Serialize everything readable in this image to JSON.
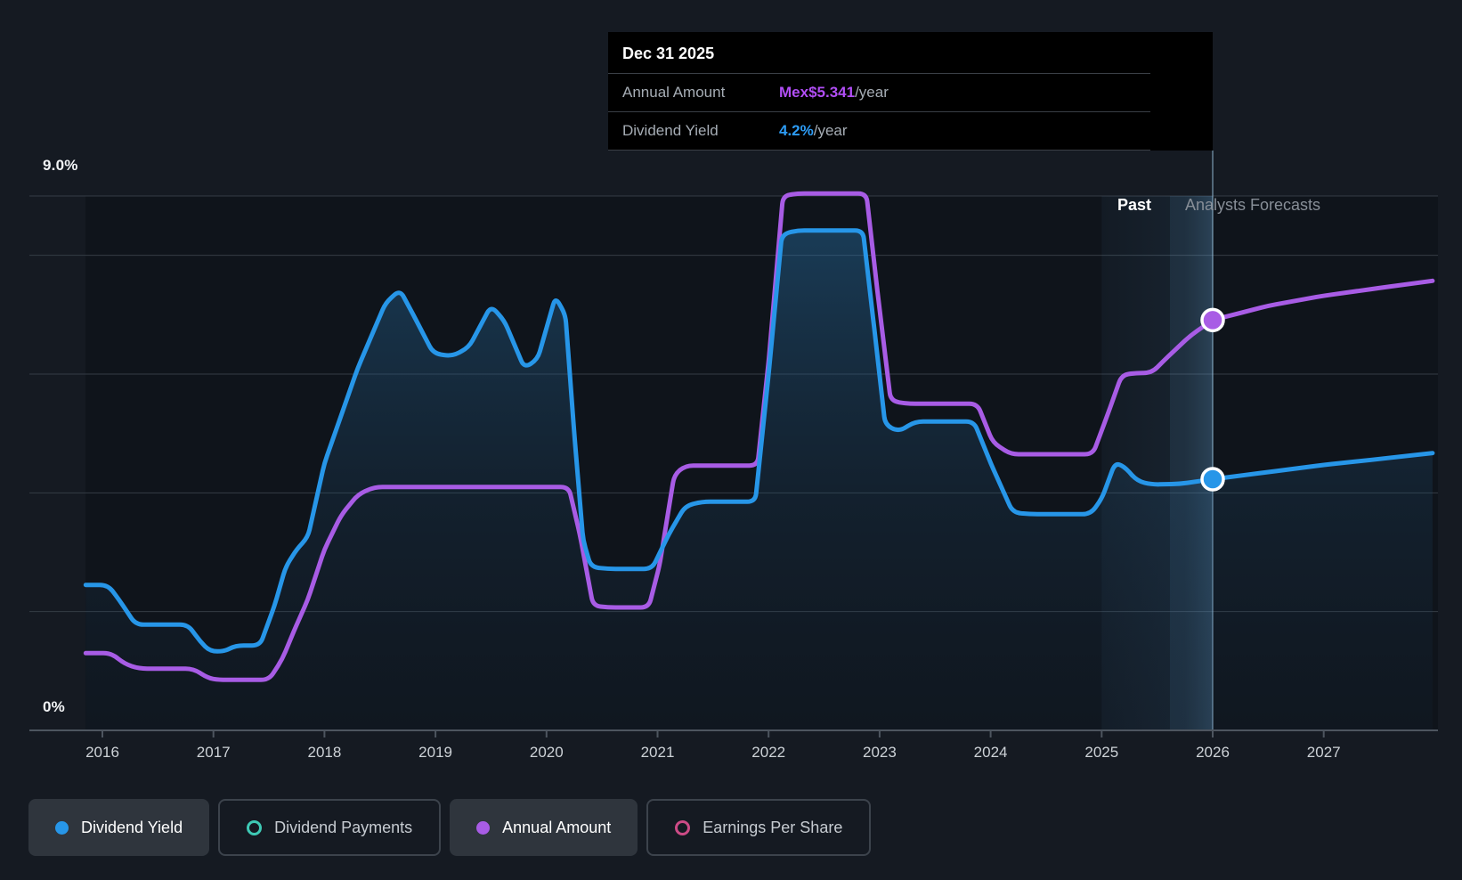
{
  "y_axis": {
    "top_label": "9.0%",
    "bottom_label": "0%"
  },
  "x_axis": {
    "years": [
      "2016",
      "2017",
      "2018",
      "2019",
      "2020",
      "2021",
      "2022",
      "2023",
      "2024",
      "2025",
      "2026",
      "2027"
    ]
  },
  "sections": {
    "past": "Past",
    "forecast": "Analysts Forecasts"
  },
  "tooltip": {
    "date": "Dec 31 2025",
    "rows": [
      {
        "label": "Annual Amount",
        "value": "Mex$5.341",
        "suffix": "/year",
        "value_color": "#b14ef5"
      },
      {
        "label": "Dividend Yield",
        "value": "4.2%",
        "suffix": "/year",
        "value_color": "#2d9cf5"
      }
    ]
  },
  "legend": [
    {
      "label": "Dividend Yield",
      "color": "#2796e8",
      "style": "filled",
      "active": true
    },
    {
      "label": "Dividend Payments",
      "color": "#3ec9b5",
      "style": "ring",
      "active": false
    },
    {
      "label": "Annual Amount",
      "color": "#a85ce5",
      "style": "filled",
      "active": true
    },
    {
      "label": "Earnings Per Share",
      "color": "#cc4b86",
      "style": "ring",
      "active": false
    }
  ],
  "colors": {
    "background": "#151a22",
    "plot_background": "#0f141b",
    "gridline": "#353c45",
    "axis": "#4d555f",
    "year_label": "#cdd2d7",
    "divider": "#9fc6e3",
    "blue": "#2796e8",
    "purple": "#a85ce5"
  },
  "chart_data": {
    "type": "area",
    "title": "Dividend history and forecast chart",
    "x_unit": "year",
    "xlim": [
      2015.85,
      2027.98
    ],
    "ylim": [
      0,
      9
    ],
    "y_tick_labels_shown": [
      "9.0%",
      "0%"
    ],
    "grid_percents": [
      9,
      8,
      6,
      4,
      2
    ],
    "band_past_to_forecast": [
      2025.0,
      2026.0
    ],
    "divider_x": 2026.0,
    "legend_position": "bottom-left",
    "series": [
      {
        "name": "Annual Amount",
        "color": "#a85ce5",
        "fill": false,
        "marker_at": [
          2026.0,
          6.91
        ],
        "marker_label": "Mex$5.341/year",
        "points": [
          [
            2015.85,
            1.3
          ],
          [
            2016.08,
            1.3
          ],
          [
            2016.2,
            1.12
          ],
          [
            2016.33,
            1.04
          ],
          [
            2016.82,
            1.04
          ],
          [
            2016.95,
            0.88
          ],
          [
            2017.05,
            0.85
          ],
          [
            2017.5,
            0.85
          ],
          [
            2017.62,
            1.2
          ],
          [
            2017.75,
            1.78
          ],
          [
            2017.85,
            2.2
          ],
          [
            2018.0,
            3.05
          ],
          [
            2018.15,
            3.62
          ],
          [
            2018.3,
            3.97
          ],
          [
            2018.45,
            4.1
          ],
          [
            2020.2,
            4.1
          ],
          [
            2020.3,
            3.3
          ],
          [
            2020.42,
            2.1
          ],
          [
            2020.55,
            2.07
          ],
          [
            2020.92,
            2.07
          ],
          [
            2021.02,
            2.8
          ],
          [
            2021.15,
            4.3
          ],
          [
            2021.25,
            4.46
          ],
          [
            2021.9,
            4.46
          ],
          [
            2022.0,
            6.2
          ],
          [
            2022.13,
            9.0
          ],
          [
            2022.25,
            9.04
          ],
          [
            2022.88,
            9.04
          ],
          [
            2022.98,
            7.4
          ],
          [
            2023.1,
            5.55
          ],
          [
            2023.25,
            5.5
          ],
          [
            2023.88,
            5.5
          ],
          [
            2024.02,
            4.85
          ],
          [
            2024.18,
            4.65
          ],
          [
            2024.92,
            4.65
          ],
          [
            2025.05,
            5.3
          ],
          [
            2025.18,
            5.98
          ],
          [
            2025.3,
            6.02
          ],
          [
            2025.45,
            6.02
          ],
          [
            2025.6,
            6.3
          ],
          [
            2025.8,
            6.65
          ],
          [
            2026.0,
            6.91
          ],
          [
            2026.5,
            7.15
          ],
          [
            2027.0,
            7.32
          ],
          [
            2027.5,
            7.45
          ],
          [
            2027.98,
            7.57
          ]
        ]
      },
      {
        "name": "Dividend Yield",
        "color": "#2796e8",
        "fill": true,
        "marker_at": [
          2026.0,
          4.23
        ],
        "marker_label": "4.2%/year",
        "points": [
          [
            2015.85,
            2.45
          ],
          [
            2016.05,
            2.45
          ],
          [
            2016.15,
            2.2
          ],
          [
            2016.3,
            1.78
          ],
          [
            2016.77,
            1.78
          ],
          [
            2016.88,
            1.5
          ],
          [
            2016.97,
            1.33
          ],
          [
            2017.1,
            1.33
          ],
          [
            2017.2,
            1.43
          ],
          [
            2017.42,
            1.43
          ],
          [
            2017.55,
            2.1
          ],
          [
            2017.65,
            2.75
          ],
          [
            2017.75,
            3.05
          ],
          [
            2017.85,
            3.25
          ],
          [
            2018.0,
            4.5
          ],
          [
            2018.3,
            6.1
          ],
          [
            2018.55,
            7.2
          ],
          [
            2018.68,
            7.42
          ],
          [
            2018.8,
            7.0
          ],
          [
            2018.98,
            6.35
          ],
          [
            2019.15,
            6.3
          ],
          [
            2019.3,
            6.45
          ],
          [
            2019.5,
            7.15
          ],
          [
            2019.62,
            6.9
          ],
          [
            2019.8,
            6.1
          ],
          [
            2019.92,
            6.25
          ],
          [
            2020.08,
            7.3
          ],
          [
            2020.17,
            7.0
          ],
          [
            2020.25,
            5.0
          ],
          [
            2020.33,
            3.2
          ],
          [
            2020.4,
            2.75
          ],
          [
            2020.55,
            2.72
          ],
          [
            2020.95,
            2.72
          ],
          [
            2021.1,
            3.3
          ],
          [
            2021.25,
            3.78
          ],
          [
            2021.4,
            3.85
          ],
          [
            2021.88,
            3.85
          ],
          [
            2022.0,
            6.0
          ],
          [
            2022.12,
            8.35
          ],
          [
            2022.25,
            8.42
          ],
          [
            2022.85,
            8.42
          ],
          [
            2022.95,
            6.8
          ],
          [
            2023.05,
            5.15
          ],
          [
            2023.17,
            5.03
          ],
          [
            2023.32,
            5.2
          ],
          [
            2023.85,
            5.2
          ],
          [
            2024.0,
            4.5
          ],
          [
            2024.2,
            3.67
          ],
          [
            2024.35,
            3.64
          ],
          [
            2024.9,
            3.64
          ],
          [
            2025.0,
            3.9
          ],
          [
            2025.12,
            4.5
          ],
          [
            2025.2,
            4.45
          ],
          [
            2025.32,
            4.2
          ],
          [
            2025.45,
            4.14
          ],
          [
            2025.7,
            4.15
          ],
          [
            2026.0,
            4.23
          ],
          [
            2026.5,
            4.35
          ],
          [
            2027.0,
            4.47
          ],
          [
            2027.5,
            4.57
          ],
          [
            2027.98,
            4.67
          ]
        ]
      }
    ]
  }
}
